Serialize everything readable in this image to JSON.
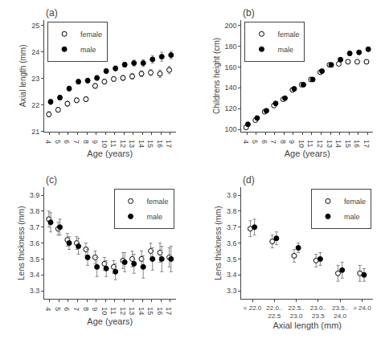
{
  "chart_data": [
    {
      "type": "scatter",
      "title": "(a)",
      "xlabel": "Age (years)",
      "ylabel": "Axial length (mm)",
      "x": [
        4,
        5,
        6,
        7,
        8,
        9,
        10,
        11,
        12,
        13,
        14,
        15,
        16,
        17
      ],
      "series": [
        {
          "name": "female",
          "color": "white",
          "marker": "circle",
          "values": [
            21.65,
            21.82,
            22.05,
            22.18,
            22.22,
            22.72,
            22.88,
            22.98,
            23.02,
            23.08,
            23.18,
            23.22,
            23.18,
            23.32
          ],
          "errors": [
            0.1,
            0.09,
            0.09,
            0.09,
            0.09,
            0.09,
            0.09,
            0.09,
            0.09,
            0.11,
            0.11,
            0.11,
            0.14,
            0.14
          ]
        },
        {
          "name": "male",
          "color": "black",
          "marker": "circle",
          "values": [
            22.12,
            22.28,
            22.62,
            22.88,
            22.92,
            23.02,
            23.28,
            23.38,
            23.52,
            23.58,
            23.58,
            23.72,
            23.82,
            23.88
          ],
          "errors": [
            0.1,
            0.09,
            0.09,
            0.09,
            0.09,
            0.09,
            0.09,
            0.09,
            0.09,
            0.11,
            0.13,
            0.14,
            0.17,
            0.14
          ]
        }
      ],
      "xlim": [
        3.4,
        17.6
      ],
      "xticks": [
        4,
        5,
        6,
        7,
        8,
        9,
        10,
        11,
        12,
        13,
        14,
        15,
        16,
        17
      ],
      "ylim": [
        21.0,
        25.2
      ],
      "yticks": [
        21,
        22,
        23,
        24,
        25
      ],
      "legend": "upper left",
      "grid": false
    },
    {
      "type": "scatter",
      "title": "(b)",
      "xlabel": "Age (years)",
      "ylabel": "Childrens height (cm)",
      "x": [
        4,
        5,
        6,
        7,
        8,
        9,
        10,
        11,
        12,
        13,
        14,
        15,
        16,
        17
      ],
      "series": [
        {
          "name": "female",
          "color": "white",
          "marker": "circle",
          "values": [
            102,
            109,
            117,
            123,
            129,
            138,
            143,
            148,
            155,
            162,
            163,
            165,
            165,
            165
          ],
          "errors": [
            1.5,
            1.5,
            1.5,
            1.5,
            1.5,
            1.5,
            1.5,
            1.5,
            1.5,
            1.5,
            1.5,
            1.5,
            1.5,
            1.5
          ]
        },
        {
          "name": "male",
          "color": "black",
          "marker": "circle",
          "values": [
            105,
            111,
            118,
            125,
            130,
            139,
            143,
            148,
            156,
            162,
            167,
            173,
            174,
            177
          ],
          "errors": [
            1.5,
            1.5,
            1.5,
            1.5,
            1.5,
            1.5,
            1.5,
            1.5,
            1.5,
            1.5,
            2.0,
            2.0,
            2.0,
            2.0
          ]
        }
      ],
      "xlim": [
        3.4,
        17.6
      ],
      "xticks": [
        4,
        5,
        6,
        7,
        8,
        9,
        10,
        11,
        12,
        13,
        14,
        15,
        16,
        17
      ],
      "ylim": [
        98,
        205
      ],
      "yticks": [
        100,
        120,
        140,
        160,
        180,
        200
      ],
      "legend": "upper left",
      "grid": false
    },
    {
      "type": "scatter",
      "title": "(c)",
      "xlabel": "Age (years)",
      "ylabel": "Lens thickness (mm)",
      "x": [
        4,
        5,
        6,
        7,
        8,
        9,
        10,
        11,
        12,
        13,
        14,
        15,
        16,
        17
      ],
      "series": [
        {
          "name": "female",
          "color": "white",
          "marker": "circle",
          "values": [
            3.75,
            3.69,
            3.62,
            3.6,
            3.56,
            3.51,
            3.47,
            3.45,
            3.49,
            3.5,
            3.5,
            3.55,
            3.54,
            3.51
          ],
          "errors": [
            0.05,
            0.04,
            0.04,
            0.04,
            0.04,
            0.04,
            0.04,
            0.04,
            0.05,
            0.05,
            0.05,
            0.05,
            0.06,
            0.06
          ]
        },
        {
          "name": "male",
          "color": "black",
          "marker": "circle",
          "values": [
            3.73,
            3.7,
            3.6,
            3.58,
            3.51,
            3.45,
            3.44,
            3.42,
            3.48,
            3.47,
            3.45,
            3.5,
            3.5,
            3.5
          ],
          "errors": [
            0.06,
            0.05,
            0.04,
            0.05,
            0.05,
            0.06,
            0.05,
            0.05,
            0.06,
            0.06,
            0.07,
            0.07,
            0.08,
            0.08
          ]
        }
      ],
      "xlim": [
        3.4,
        17.6
      ],
      "xticks": [
        4,
        5,
        6,
        7,
        8,
        9,
        10,
        11,
        12,
        13,
        14,
        15,
        16,
        17
      ],
      "ylim": [
        3.25,
        3.95
      ],
      "yticks": [
        3.3,
        3.4,
        3.5,
        3.6,
        3.7,
        3.8,
        3.9
      ],
      "legend": "upper right",
      "grid": false
    },
    {
      "type": "scatter",
      "title": "(d)",
      "xlabel": "Axial length (mm)",
      "ylabel": "Lens thickness (mm)",
      "categories": [
        "< 22.0",
        "22.0..\n22.5",
        "22.5..\n23.0",
        "23.0..\n23.5",
        "23.5..\n24.0",
        "> 24.0"
      ],
      "series": [
        {
          "name": "female",
          "color": "white",
          "marker": "circle",
          "values": [
            3.69,
            3.61,
            3.52,
            3.49,
            3.41,
            3.41
          ],
          "errors": [
            0.05,
            0.04,
            0.04,
            0.04,
            0.05,
            0.05
          ]
        },
        {
          "name": "male",
          "color": "black",
          "marker": "circle",
          "values": [
            3.7,
            3.63,
            3.57,
            3.5,
            3.43,
            3.4
          ],
          "errors": [
            0.05,
            0.04,
            0.03,
            0.04,
            0.05,
            0.04
          ]
        }
      ],
      "ylim": [
        3.25,
        3.95
      ],
      "yticks": [
        3.3,
        3.4,
        3.5,
        3.6,
        3.7,
        3.8,
        3.9
      ],
      "legend": "upper right",
      "grid": false
    }
  ]
}
